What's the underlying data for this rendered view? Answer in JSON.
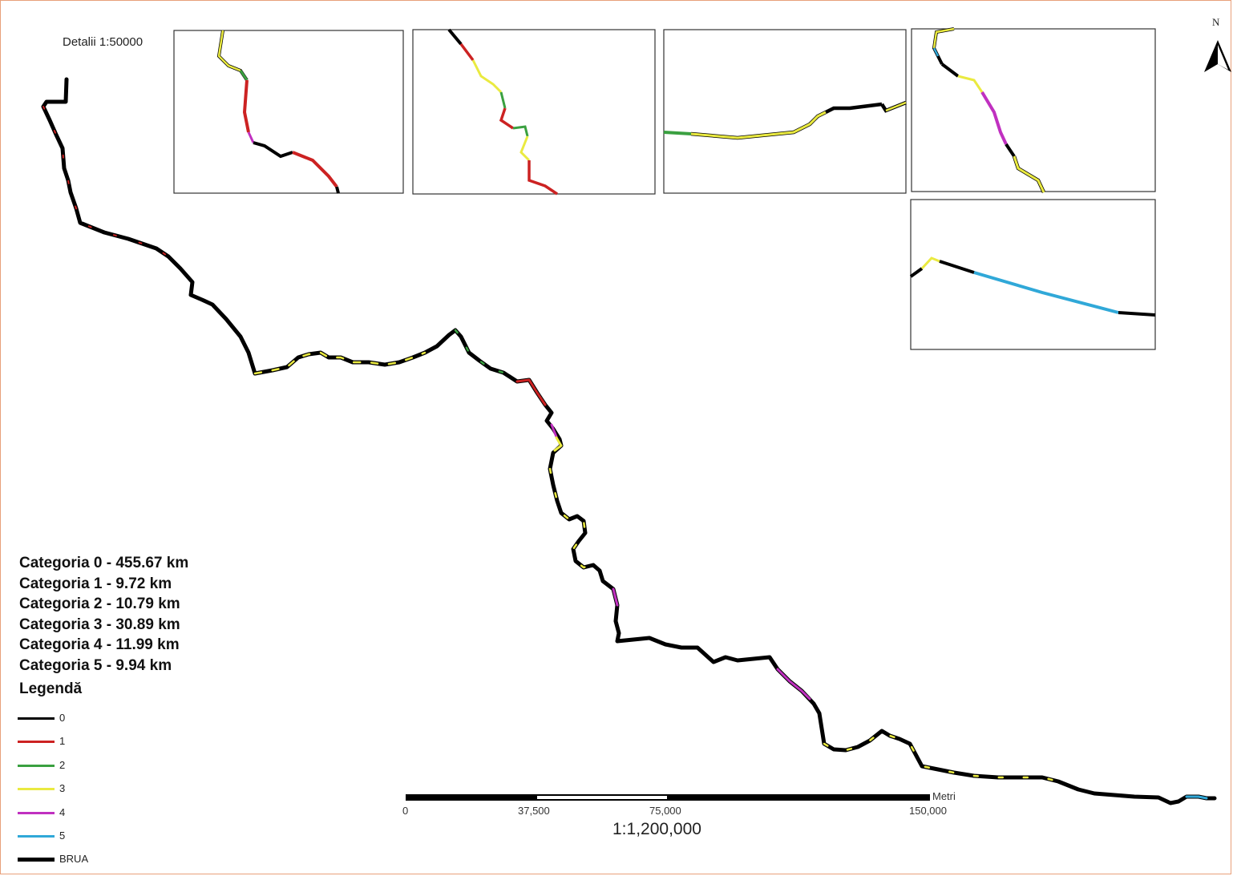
{
  "details_label": "Detalii 1:50000",
  "stats": [
    "Categoria 0 - 455.67 km",
    "Categoria 1 - 9.72 km",
    "Categoria 2 - 10.79 km",
    "Categoria 3 - 30.89 km",
    "Categoria 4 - 11.99 km",
    "Categoria 5 - 9.94 km"
  ],
  "legend": {
    "title": "Legendă",
    "items": [
      {
        "label": "0",
        "color": "#000000"
      },
      {
        "label": "1",
        "color": "#cc2222"
      },
      {
        "label": "2",
        "color": "#3aa040"
      },
      {
        "label": "3",
        "color": "#eaea40"
      },
      {
        "label": "4",
        "color": "#c030c0"
      },
      {
        "label": "5",
        "color": "#30a8d8"
      },
      {
        "label": "BRUA",
        "color": "#000000"
      }
    ]
  },
  "scale_bar": {
    "ticks": [
      "0",
      "37,500",
      "75,000",
      "150,000"
    ],
    "unit": "Metri",
    "ratio": "1:1,200,000"
  },
  "north_arrow": {
    "label": "N",
    "icon": "north-arrow-icon"
  }
}
